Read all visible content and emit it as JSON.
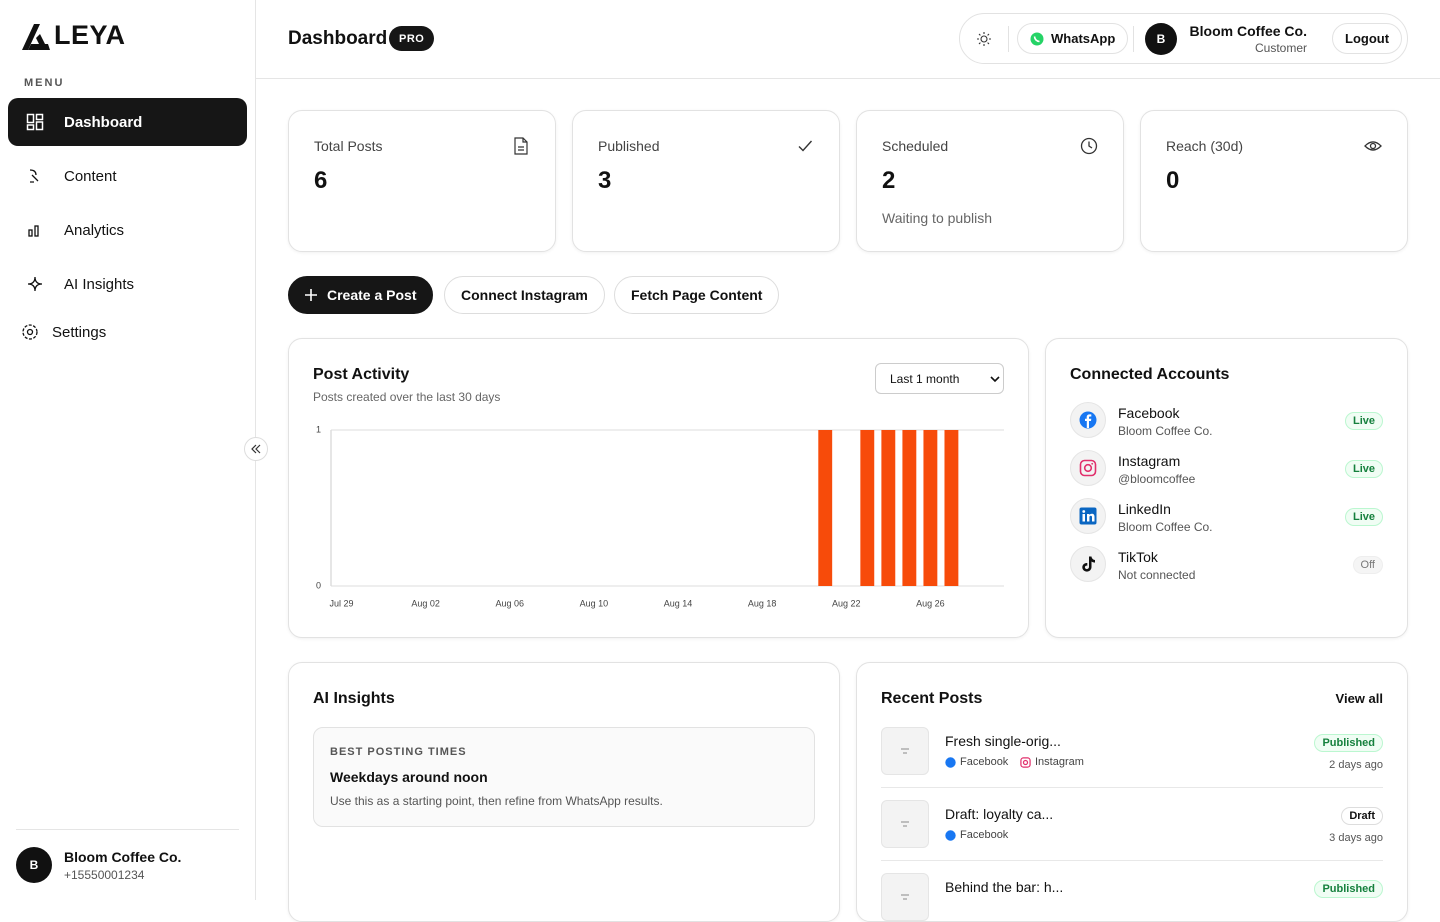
{
  "sidebar": {
    "logo": "LEYA",
    "menu_label": "MENU",
    "items": [
      "Dashboard",
      "Content",
      "Analytics",
      "AI Insights",
      "Settings"
    ],
    "user": {
      "avatar": "B",
      "name": "Bloom Coffee Co.",
      "phone": "+15550001234"
    }
  },
  "header": {
    "title": "Dashboard",
    "badge": "PRO",
    "whatsapp": "WhatsApp",
    "user": {
      "avatar": "B",
      "name": "Bloom Coffee Co.",
      "role": "Customer"
    },
    "logout": "Logout"
  },
  "stats": [
    {
      "label": "Total Posts",
      "value": 6
    },
    {
      "label": "Published",
      "value": 3
    },
    {
      "label": "Scheduled",
      "value": 2,
      "note": "Waiting to publish"
    },
    {
      "label": "Reach (30d)",
      "value": 0
    }
  ],
  "actions": [
    "Create a Post",
    "Connect Instagram",
    "Fetch Page Content"
  ],
  "post_activity": {
    "title": "Post Activity",
    "subtitle": "Posts created over the last 30 days",
    "range": "Last 1 month"
  },
  "chart_data": {
    "type": "bar",
    "categories": [
      "Jul 29",
      null,
      null,
      null,
      "Aug 02",
      null,
      null,
      null,
      "Aug 06",
      null,
      null,
      null,
      "Aug 10",
      null,
      null,
      null,
      "Aug 14",
      null,
      null,
      null,
      "Aug 18",
      null,
      null,
      null,
      "Aug 22",
      null,
      null,
      null,
      "Aug 26",
      null,
      null,
      null
    ],
    "values": [
      0,
      0,
      0,
      0,
      0,
      0,
      0,
      0,
      0,
      0,
      0,
      0,
      0,
      0,
      0,
      0,
      0,
      0,
      0,
      0,
      0,
      0,
      0,
      1,
      0,
      1,
      1,
      1,
      1,
      1,
      0,
      0
    ],
    "color": "#f74b0a",
    "ylim": [
      0,
      1
    ],
    "yticks": [
      0,
      1
    ],
    "grid": true
  },
  "accounts": {
    "title": "Connected Accounts",
    "items": [
      {
        "name": "Facebook",
        "detail": "Bloom Coffee Co.",
        "status": "Live"
      },
      {
        "name": "Instagram",
        "detail": "@bloomcoffee",
        "status": "Live"
      },
      {
        "name": "LinkedIn",
        "detail": "Bloom Coffee Co.",
        "status": "Live"
      },
      {
        "name": "TikTok",
        "detail": "Not connected",
        "status": "Off"
      }
    ]
  },
  "ai_insights": {
    "title": "AI Insights",
    "card": {
      "kicker": "BEST POSTING TIMES",
      "heading": "Weekdays around noon",
      "text": "Use this as a starting point, then refine from WhatsApp results."
    }
  },
  "recent_posts": {
    "title": "Recent Posts",
    "view_all": "View all",
    "items": [
      {
        "title": "Fresh single-orig...",
        "platforms": [
          "Facebook",
          "Instagram"
        ],
        "status": "Published",
        "time": "2 days ago"
      },
      {
        "title": "Draft: loyalty ca...",
        "platforms": [
          "Facebook"
        ],
        "status": "Draft",
        "time": "3 days ago"
      },
      {
        "title": "Behind the bar: h...",
        "status": "Published"
      }
    ]
  }
}
